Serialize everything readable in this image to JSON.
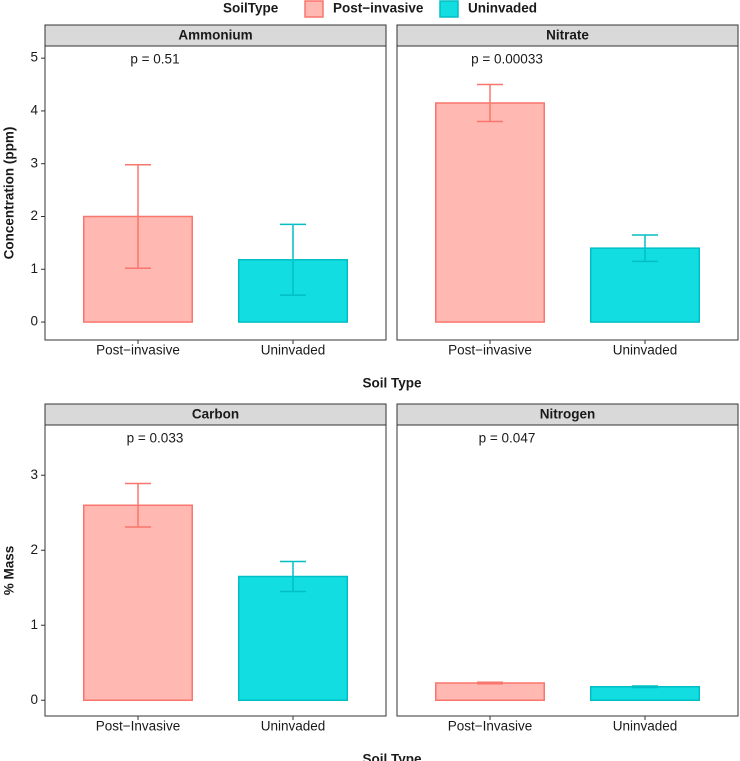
{
  "legend": {
    "title": "SoilType",
    "entries": [
      {
        "name": "Post−invasive",
        "color": "#f8766d",
        "fill": "#ffb8b2"
      },
      {
        "name": "Uninvaded",
        "color": "#00bfc4",
        "fill": "#12dde0"
      }
    ]
  },
  "chart_data": [
    {
      "type": "bar",
      "title": "Ammonium",
      "annotation": "p = 0.51",
      "ylabel": "Concentration (ppm)",
      "xlabel": "Soil Type",
      "categories": [
        "Post−invasive",
        "Uninvaded"
      ],
      "values": [
        2.0,
        1.18
      ],
      "errors": [
        0.98,
        0.67
      ],
      "ylim": [
        -0.34,
        5.23
      ],
      "yticks": [
        0,
        1,
        2,
        3,
        4,
        5
      ]
    },
    {
      "type": "bar",
      "title": "Nitrate",
      "annotation": "p = 0.00033",
      "categories": [
        "Post−invasive",
        "Uninvaded"
      ],
      "values": [
        4.15,
        1.4
      ],
      "errors": [
        0.35,
        0.25
      ],
      "ylim": [
        -0.34,
        5.23
      ]
    },
    {
      "type": "bar",
      "title": "Carbon",
      "annotation": "p = 0.033",
      "ylabel": "% Mass",
      "xlabel": "Soil Type",
      "categories": [
        "Post−Invasive",
        "Uninvaded"
      ],
      "values": [
        2.6,
        1.65
      ],
      "errors": [
        0.29,
        0.2
      ],
      "ylim": [
        -0.21,
        3.67
      ],
      "yticks": [
        0,
        1,
        2,
        3
      ]
    },
    {
      "type": "bar",
      "title": "Nitrogen",
      "annotation": "p = 0.047",
      "categories": [
        "Post−Invasive",
        "Uninvaded"
      ],
      "values": [
        0.23,
        0.18
      ],
      "errors": [
        0.01,
        0.01
      ],
      "ylim": [
        -0.21,
        3.67
      ]
    }
  ]
}
